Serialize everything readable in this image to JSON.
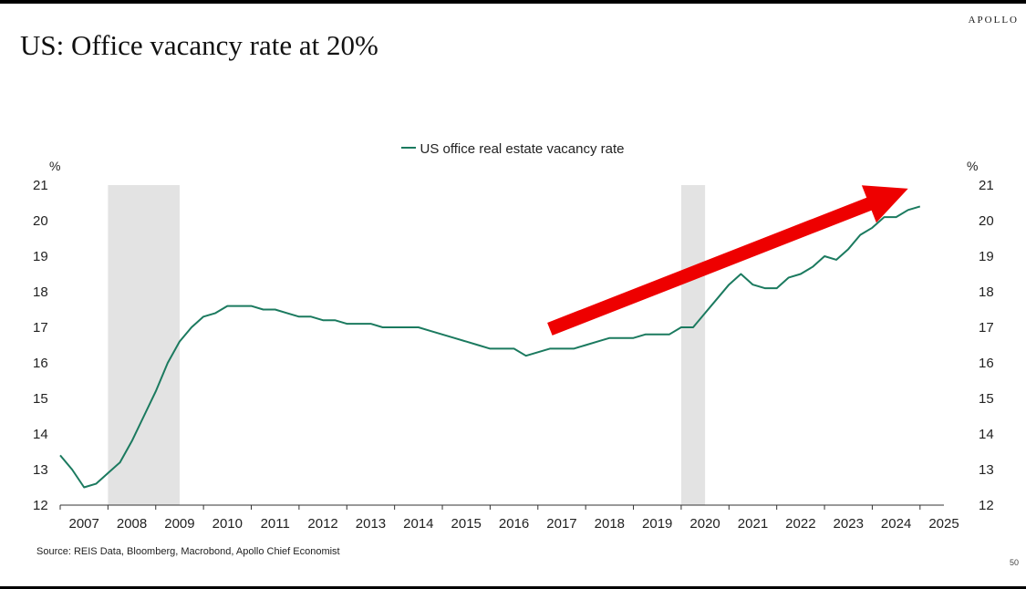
{
  "brand": "APOLLO",
  "page_number": "50",
  "source": "Source: REIS Data, Bloomberg, Macrobond, Apollo Chief Economist",
  "colors": {
    "series": "#1b7a5f",
    "recession_shading": "#e3e3e3",
    "arrow": "#ee0000",
    "axis": "#333333"
  },
  "chart_data": {
    "type": "line",
    "title": "US: Office vacancy rate at 20%",
    "ylabel_left": "%",
    "ylabel_right": "%",
    "xlabel": "",
    "ylim": [
      12,
      21
    ],
    "yticks": [
      12,
      13,
      14,
      15,
      16,
      17,
      18,
      19,
      20,
      21
    ],
    "xlim": [
      2006.75,
      2025.25
    ],
    "xticks": [
      "2007",
      "2008",
      "2009",
      "2010",
      "2011",
      "2012",
      "2013",
      "2014",
      "2015",
      "2016",
      "2017",
      "2018",
      "2019",
      "2020",
      "2021",
      "2022",
      "2023",
      "2024",
      "2025"
    ],
    "grid": false,
    "legend_position": "top-center",
    "recessions": [
      [
        2007.75,
        2009.25
      ],
      [
        2019.75,
        2020.25
      ]
    ],
    "annotation": {
      "type": "arrow",
      "from": [
        2017.0,
        16.95
      ],
      "to": [
        2024.5,
        20.9
      ]
    },
    "series": [
      {
        "name": "US office real estate vacancy rate",
        "points": [
          [
            2006.75,
            13.4
          ],
          [
            2007.0,
            13.0
          ],
          [
            2007.25,
            12.5
          ],
          [
            2007.5,
            12.6
          ],
          [
            2007.75,
            12.9
          ],
          [
            2008.0,
            13.2
          ],
          [
            2008.25,
            13.8
          ],
          [
            2008.5,
            14.5
          ],
          [
            2008.75,
            15.2
          ],
          [
            2009.0,
            16.0
          ],
          [
            2009.25,
            16.6
          ],
          [
            2009.5,
            17.0
          ],
          [
            2009.75,
            17.3
          ],
          [
            2010.0,
            17.4
          ],
          [
            2010.25,
            17.6
          ],
          [
            2010.5,
            17.6
          ],
          [
            2010.75,
            17.6
          ],
          [
            2011.0,
            17.5
          ],
          [
            2011.25,
            17.5
          ],
          [
            2011.5,
            17.4
          ],
          [
            2011.75,
            17.3
          ],
          [
            2012.0,
            17.3
          ],
          [
            2012.25,
            17.2
          ],
          [
            2012.5,
            17.2
          ],
          [
            2012.75,
            17.1
          ],
          [
            2013.0,
            17.1
          ],
          [
            2013.25,
            17.1
          ],
          [
            2013.5,
            17.0
          ],
          [
            2013.75,
            17.0
          ],
          [
            2014.0,
            17.0
          ],
          [
            2014.25,
            17.0
          ],
          [
            2014.5,
            16.9
          ],
          [
            2014.75,
            16.8
          ],
          [
            2015.0,
            16.7
          ],
          [
            2015.25,
            16.6
          ],
          [
            2015.5,
            16.5
          ],
          [
            2015.75,
            16.4
          ],
          [
            2016.0,
            16.4
          ],
          [
            2016.25,
            16.4
          ],
          [
            2016.5,
            16.2
          ],
          [
            2016.75,
            16.3
          ],
          [
            2017.0,
            16.4
          ],
          [
            2017.25,
            16.4
          ],
          [
            2017.5,
            16.4
          ],
          [
            2017.75,
            16.5
          ],
          [
            2018.0,
            16.6
          ],
          [
            2018.25,
            16.7
          ],
          [
            2018.5,
            16.7
          ],
          [
            2018.75,
            16.7
          ],
          [
            2019.0,
            16.8
          ],
          [
            2019.25,
            16.8
          ],
          [
            2019.5,
            16.8
          ],
          [
            2019.75,
            17.0
          ],
          [
            2020.0,
            17.0
          ],
          [
            2020.25,
            17.4
          ],
          [
            2020.5,
            17.8
          ],
          [
            2020.75,
            18.2
          ],
          [
            2021.0,
            18.5
          ],
          [
            2021.25,
            18.2
          ],
          [
            2021.5,
            18.1
          ],
          [
            2021.75,
            18.1
          ],
          [
            2022.0,
            18.4
          ],
          [
            2022.25,
            18.5
          ],
          [
            2022.5,
            18.7
          ],
          [
            2022.75,
            19.0
          ],
          [
            2023.0,
            18.9
          ],
          [
            2023.25,
            19.2
          ],
          [
            2023.5,
            19.6
          ],
          [
            2023.75,
            19.8
          ],
          [
            2024.0,
            20.1
          ],
          [
            2024.25,
            20.1
          ],
          [
            2024.5,
            20.3
          ],
          [
            2024.75,
            20.4
          ]
        ]
      }
    ]
  }
}
